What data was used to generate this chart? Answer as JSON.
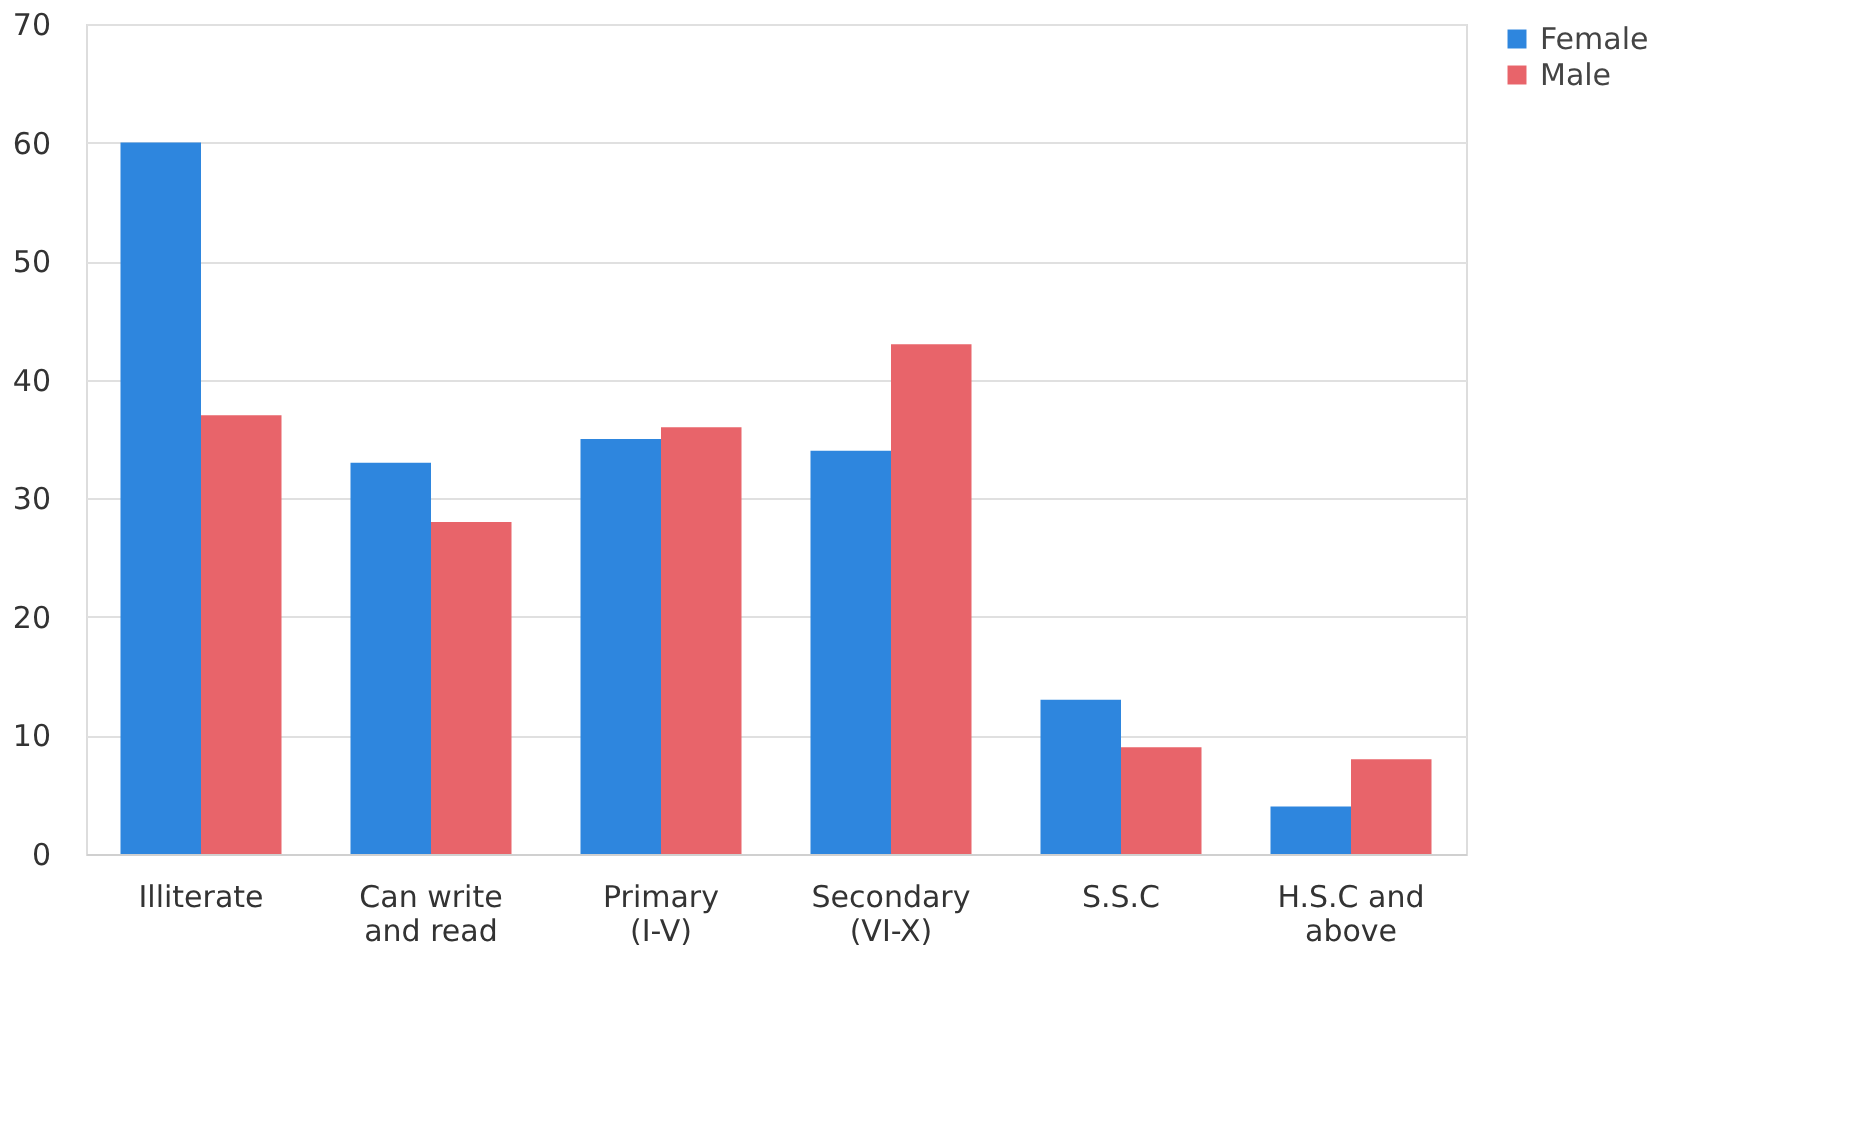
{
  "chart_data": {
    "type": "bar",
    "categories": [
      "Illiterate",
      "Can write and read",
      "Primary (I-V)",
      "Secondary (VI-X)",
      "S.S.C",
      "H.S.C and above"
    ],
    "series": [
      {
        "name": "Female",
        "color": "#2e86de",
        "values": [
          60,
          33,
          35,
          34,
          13,
          4
        ]
      },
      {
        "name": "Male",
        "color": "#e8646a",
        "values": [
          37,
          28,
          36,
          43,
          9,
          8
        ]
      }
    ],
    "ylim": [
      0,
      70
    ],
    "yticks": [
      0,
      10,
      20,
      30,
      40,
      50,
      60,
      70
    ],
    "grid": "y",
    "legend": "right"
  }
}
